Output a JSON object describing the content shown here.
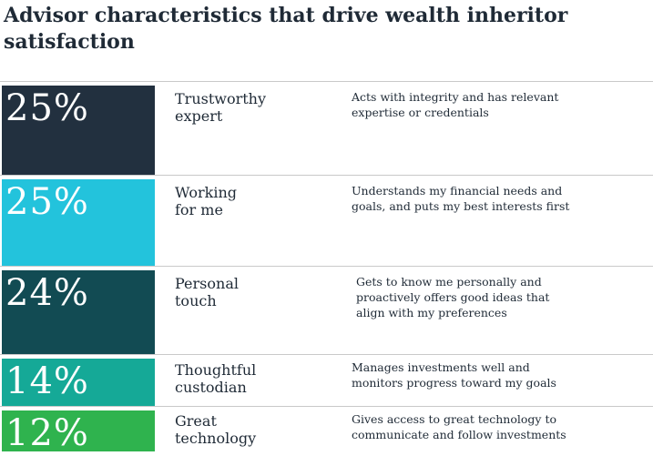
{
  "title": "Advisor characteristics that drive wealth inheritor satisfaction",
  "rows": [
    {
      "percent": "25%",
      "name": "Trustworthy\nexpert",
      "description": "Acts with integrity and has relevant\nexpertise or credentials",
      "color": "#22303f"
    },
    {
      "percent": "25%",
      "name": "Working\nfor me",
      "description": "Understands my financial needs and\ngoals, and puts my best interests first",
      "color": "#23c3dc"
    },
    {
      "percent": "24%",
      "name": "Personal\ntouch",
      "description": "Gets to know me personally and\nproactively offers good ideas that\nalign with my preferences",
      "color": "#124b53"
    },
    {
      "percent": "14%",
      "name": "Thoughtful\ncustodian",
      "description": "Manages investments well and\nmonitors progress toward my goals",
      "color": "#15a997"
    },
    {
      "percent": "12%",
      "name": "Great\ntechnology",
      "description": "Gives access to great technology to\ncommunicate and follow investments",
      "color": "#2fb34e"
    }
  ]
}
